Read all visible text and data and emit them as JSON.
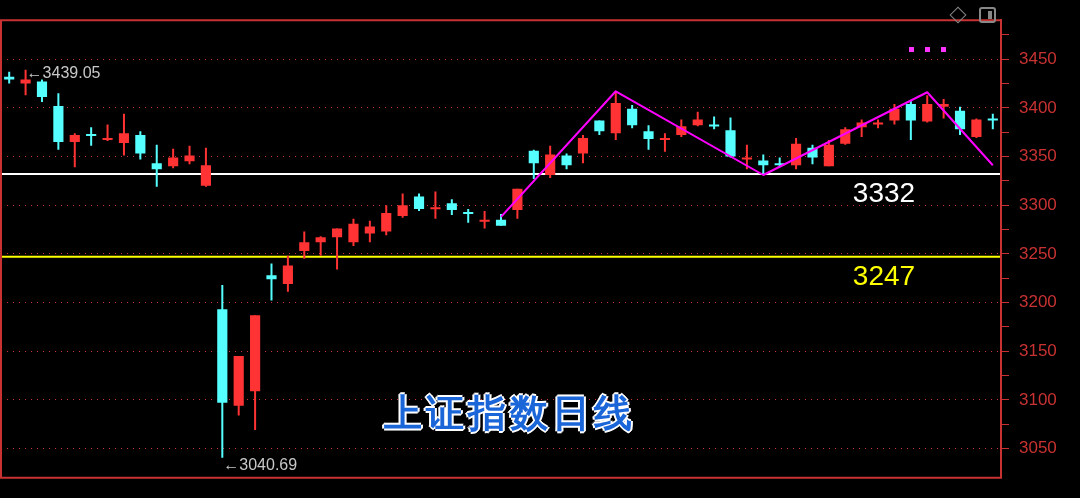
{
  "chart_data": {
    "type": "candlestick",
    "title": "上证指数日线",
    "categories": [
      null,
      null,
      null,
      null,
      null,
      null,
      null,
      null,
      null,
      null,
      null,
      null,
      null,
      null,
      null,
      null,
      null,
      null,
      null,
      null,
      null,
      null,
      null,
      null,
      null,
      null,
      null,
      null,
      null,
      null,
      null,
      null,
      null,
      null,
      null,
      null,
      null,
      null,
      null,
      null,
      null,
      null,
      null,
      null,
      null,
      null,
      null,
      null,
      null,
      null,
      null,
      null,
      null,
      null,
      null,
      null,
      null,
      null,
      null,
      null,
      null
    ],
    "ohlc": [
      [
        3432,
        3437,
        3425,
        3429
      ],
      [
        3425,
        3439.05,
        3413,
        3429
      ],
      [
        3427,
        3429,
        3406,
        3411
      ],
      [
        3402,
        3415,
        3357,
        3365
      ],
      [
        3365,
        3374,
        3339,
        3372
      ],
      [
        3373,
        3380,
        3361,
        3371
      ],
      [
        3367,
        3383,
        3366,
        3369
      ],
      [
        3364,
        3394,
        3351,
        3374
      ],
      [
        3372,
        3376,
        3347,
        3353
      ],
      [
        3343,
        3362,
        3319,
        3337
      ],
      [
        3340,
        3358,
        3338,
        3349
      ],
      [
        3345,
        3361,
        3342,
        3351
      ],
      [
        3320,
        3359,
        3319,
        3341
      ],
      [
        3193,
        3218,
        3040.69,
        3097
      ],
      [
        3094,
        3145,
        3084,
        3145
      ],
      [
        3109,
        3187,
        3069,
        3187
      ],
      [
        3228,
        3240,
        3202,
        3224
      ],
      [
        3219,
        3248,
        3211,
        3238
      ],
      [
        3253,
        3273,
        3245,
        3262
      ],
      [
        3262,
        3268,
        3248,
        3267
      ],
      [
        3267,
        3276,
        3234,
        3276
      ],
      [
        3262,
        3286,
        3258,
        3281
      ],
      [
        3271,
        3284,
        3262,
        3278
      ],
      [
        3273,
        3300,
        3269,
        3292
      ],
      [
        3289,
        3312,
        3287,
        3300
      ],
      [
        3309,
        3312,
        3294,
        3296
      ],
      [
        3296,
        3314,
        3286,
        3298
      ],
      [
        3302,
        3306,
        3290,
        3295
      ],
      [
        3293,
        3296,
        3282,
        3291
      ],
      [
        3284,
        3294,
        3276,
        3285
      ],
      [
        3285,
        3291,
        3279,
        3279
      ],
      [
        3295,
        3317,
        3286,
        3317
      ],
      [
        3356,
        3357,
        3327,
        3343
      ],
      [
        3331,
        3361,
        3328,
        3352
      ],
      [
        3351,
        3353,
        3337,
        3341
      ],
      [
        3353,
        3372,
        3343,
        3369
      ],
      [
        3387,
        3387,
        3372,
        3376
      ],
      [
        3374,
        3417,
        3367,
        3405
      ],
      [
        3399,
        3403,
        3379,
        3382
      ],
      [
        3376,
        3382,
        3357,
        3368
      ],
      [
        3367,
        3374,
        3355,
        3369
      ],
      [
        3372,
        3388,
        3370,
        3381
      ],
      [
        3382,
        3396,
        3381,
        3388
      ],
      [
        3383,
        3391,
        3378,
        3382
      ],
      [
        3377,
        3390,
        3349,
        3350
      ],
      [
        3347,
        3362,
        3337,
        3349
      ],
      [
        3346,
        3352,
        3332,
        3341
      ],
      [
        3343,
        3349,
        3339,
        3341
      ],
      [
        3341,
        3369,
        3337,
        3363
      ],
      [
        3359,
        3362,
        3342,
        3349
      ],
      [
        3340,
        3367,
        3340,
        3362
      ],
      [
        3363,
        3380,
        3362,
        3378
      ],
      [
        3380,
        3388,
        3370,
        3385
      ],
      [
        3383,
        3388,
        3379,
        3385
      ],
      [
        3387,
        3404,
        3383,
        3399
      ],
      [
        3404,
        3407,
        3367,
        3387
      ],
      [
        3386,
        3413,
        3385,
        3404
      ],
      [
        3401,
        3409,
        3389,
        3404
      ],
      [
        3397,
        3401,
        3372,
        3378
      ],
      [
        3370,
        3389,
        3369,
        3388
      ],
      [
        3389,
        3394,
        3378,
        3387
      ]
    ],
    "colors": [
      "#55ffff",
      "#ff3333",
      "#55ffff",
      "#55ffff",
      "#ff3333",
      "#55ffff",
      "#ff3333",
      "#ff3333",
      "#55ffff",
      "#55ffff",
      "#ff3333",
      "#ff3333",
      "#ff3333",
      "#55ffff",
      "#ff3333",
      "#ff3333",
      "#55ffff",
      "#ff3333",
      "#ff3333",
      "#ff3333",
      "#ff3333",
      "#ff3333",
      "#ff3333",
      "#ff3333",
      "#ff3333",
      "#55ffff",
      "#ff3333",
      "#55ffff",
      "#55ffff",
      "#ff3333",
      "#55ffff",
      "#ff3333",
      "#55ffff",
      "#ff3333",
      "#55ffff",
      "#ff3333",
      "#55ffff",
      "#ff3333",
      "#55ffff",
      "#55ffff",
      "#ff3333",
      "#ff3333",
      "#ff3333",
      "#55ffff",
      "#55ffff",
      "#ff3333",
      "#55ffff",
      "#55ffff",
      "#ff3333",
      "#55ffff",
      "#ff3333",
      "#ff3333",
      "#ff3333",
      "#ff3333",
      "#ff3333",
      "#55ffff",
      "#ff3333",
      "#ff3333",
      "#55ffff",
      "#ff3333",
      "#55ffff"
    ],
    "series": [
      {
        "type": "line",
        "color": "#ff00ff",
        "values": [
          null,
          null,
          null,
          null,
          null,
          null,
          null,
          null,
          null,
          null,
          null,
          null,
          null,
          null,
          null,
          null,
          null,
          null,
          null,
          null,
          null,
          null,
          null,
          null,
          null,
          null,
          null,
          null,
          null,
          null,
          3288,
          null,
          null,
          null,
          null,
          null,
          null,
          3417,
          null,
          null,
          null,
          null,
          null,
          null,
          null,
          null,
          3331,
          null,
          null,
          null,
          null,
          null,
          null,
          null,
          null,
          null,
          3416,
          null,
          null,
          null,
          3341
        ]
      }
    ],
    "ylim": [
      3020,
      3490
    ],
    "yticks": [
      3050,
      {
        "value": 3075,
        "label": null
      },
      3100,
      {
        "value": 3125,
        "label": null
      },
      3150,
      {
        "value": 3175,
        "label": null
      },
      3200,
      {
        "value": 3225,
        "label": null
      },
      3250,
      {
        "value": 3275,
        "label": null
      },
      3300,
      {
        "value": 3325,
        "label": null
      },
      3350,
      {
        "value": 3375,
        "label": null
      },
      3400,
      {
        "value": 3425,
        "label": null
      },
      3450,
      {
        "value": 3475,
        "label": null
      }
    ],
    "grid": "y",
    "ref_lines": [
      {
        "axis": "y",
        "value": 3332,
        "label": "3332",
        "color": "#ffffff"
      },
      {
        "axis": "y",
        "value": 3247,
        "label": "3247",
        "color": "#ffff00"
      }
    ],
    "annotations": [
      "←3439.05",
      "←3040.69"
    ]
  }
}
